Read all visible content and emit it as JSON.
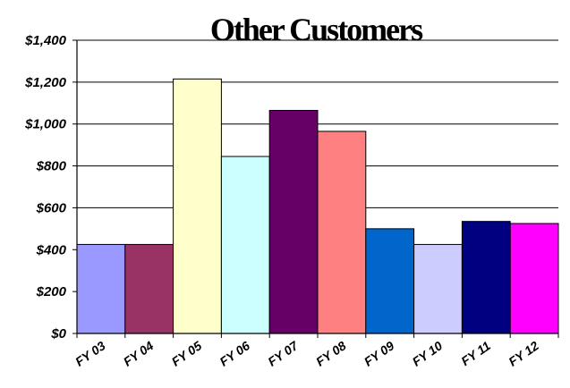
{
  "chart_data": {
    "type": "bar",
    "title": "Other Customers",
    "categories": [
      "FY 03",
      "FY 04",
      "FY 05",
      "FY 06",
      "FY 07",
      "FY 08",
      "FY 09",
      "FY 10",
      "FY 11",
      "FY 12"
    ],
    "values": [
      425,
      425,
      1215,
      845,
      1065,
      965,
      500,
      425,
      535,
      525
    ],
    "ylim": [
      0,
      1400
    ],
    "yticks": [
      0,
      200,
      400,
      600,
      800,
      1000,
      1200,
      1400
    ],
    "ytick_labels": [
      "$0",
      "$200",
      "$400",
      "$600",
      "$800",
      "$1,000",
      "$1,200",
      "$1,400"
    ],
    "colors": [
      "#9999ff",
      "#993366",
      "#ffffcc",
      "#ccffff",
      "#660066",
      "#ff8080",
      "#0066cc",
      "#ccccff",
      "#000080",
      "#ff00ff"
    ],
    "grid": true,
    "legend": "none"
  }
}
